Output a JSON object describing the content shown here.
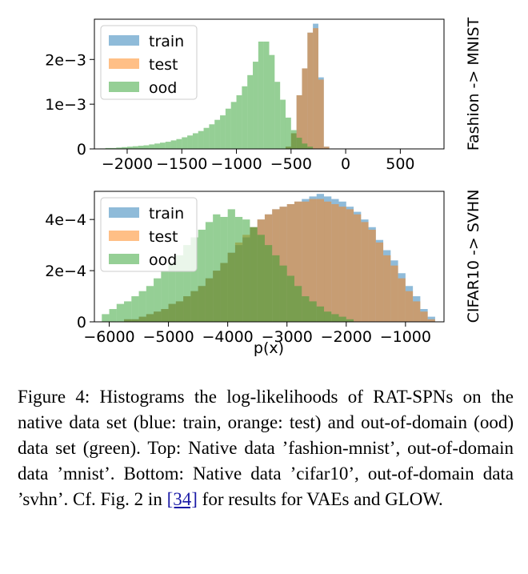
{
  "chart_data": [
    {
      "type": "histogram",
      "side_title": "Fashion -> MNIST",
      "xlim": [
        -2300,
        900
      ],
      "ylim": [
        0,
        0.0029
      ],
      "xticks": [
        -2000,
        -1500,
        -1000,
        -500,
        0,
        500
      ],
      "xtick_labels": [
        "−2000",
        "−1500",
        "−1000",
        "−500",
        "0",
        "500"
      ],
      "yticks": [
        0,
        0.001,
        0.002
      ],
      "ytick_labels": [
        "0",
        "1e−3",
        "2e−3"
      ],
      "bin_width": 50,
      "legend": "top-left",
      "series": [
        {
          "name": "train",
          "color": "#1f77b4",
          "alpha": 0.5,
          "bins": [
            [
              -550,
              5e-05
            ],
            [
              -500,
              0.00035
            ],
            [
              -450,
              0.0012
            ],
            [
              -400,
              0.0018
            ],
            [
              -350,
              0.0026
            ],
            [
              -300,
              0.0028
            ],
            [
              -250,
              0.0016
            ],
            [
              -200,
              5e-05
            ]
          ]
        },
        {
          "name": "test",
          "color": "#ff7f0e",
          "alpha": 0.5,
          "bins": [
            [
              -550,
              5e-05
            ],
            [
              -500,
              0.00035
            ],
            [
              -450,
              0.0012
            ],
            [
              -400,
              0.0018
            ],
            [
              -350,
              0.0026
            ],
            [
              -300,
              0.0027
            ],
            [
              -250,
              0.00155
            ],
            [
              -200,
              5e-05
            ]
          ]
        },
        {
          "name": "ood",
          "color": "#2ca02c",
          "alpha": 0.5,
          "bins": [
            [
              -2250,
              1e-05
            ],
            [
              -2200,
              2e-05
            ],
            [
              -2150,
              2e-05
            ],
            [
              -2100,
              3e-05
            ],
            [
              -2050,
              4e-05
            ],
            [
              -2000,
              5e-05
            ],
            [
              -1950,
              6e-05
            ],
            [
              -1900,
              7e-05
            ],
            [
              -1850,
              8e-05
            ],
            [
              -1800,
              0.0001
            ],
            [
              -1750,
              0.00012
            ],
            [
              -1700,
              0.00014
            ],
            [
              -1650,
              0.00016
            ],
            [
              -1600,
              0.00019
            ],
            [
              -1550,
              0.00022
            ],
            [
              -1500,
              0.00026
            ],
            [
              -1450,
              0.0003
            ],
            [
              -1400,
              0.00035
            ],
            [
              -1350,
              0.0004
            ],
            [
              -1300,
              0.00047
            ],
            [
              -1250,
              0.00055
            ],
            [
              -1200,
              0.00065
            ],
            [
              -1150,
              0.00075
            ],
            [
              -1100,
              0.0009
            ],
            [
              -1050,
              0.00105
            ],
            [
              -1000,
              0.0012
            ],
            [
              -950,
              0.0014
            ],
            [
              -900,
              0.00165
            ],
            [
              -850,
              0.00195
            ],
            [
              -800,
              0.0024
            ],
            [
              -750,
              0.0024
            ],
            [
              -700,
              0.0021
            ],
            [
              -650,
              0.0015
            ],
            [
              -600,
              0.0011
            ],
            [
              -550,
              0.0007
            ],
            [
              -500,
              0.00042
            ],
            [
              -450,
              0.00025
            ],
            [
              -400,
              0.00012
            ],
            [
              -350,
              5e-05
            ]
          ]
        }
      ]
    },
    {
      "type": "histogram",
      "side_title": "CIFAR10 -> SVHN",
      "xlim": [
        -6250,
        -350
      ],
      "ylim": [
        0,
        0.00051
      ],
      "xticks": [
        -6000,
        -5000,
        -4000,
        -3000,
        -2000,
        -1000
      ],
      "xtick_labels": [
        "−6000",
        "−5000",
        "−4000",
        "−3000",
        "−2000",
        "−1000"
      ],
      "yticks": [
        0,
        0.0002,
        0.0004
      ],
      "ytick_labels": [
        "0",
        "2e−4",
        "4e−4"
      ],
      "xlabel": "p(x)",
      "bin_width": 125,
      "legend": "top-left",
      "series": [
        {
          "name": "train",
          "color": "#1f77b4",
          "alpha": 0.5,
          "bins": [
            [
              -5750,
              1e-05
            ],
            [
              -5625,
              1e-05
            ],
            [
              -5500,
              2e-05
            ],
            [
              -5375,
              3e-05
            ],
            [
              -5250,
              4e-05
            ],
            [
              -5125,
              5e-05
            ],
            [
              -5000,
              7e-05
            ],
            [
              -4875,
              8e-05
            ],
            [
              -4750,
              0.0001
            ],
            [
              -4625,
              0.00012
            ],
            [
              -4500,
              0.00014
            ],
            [
              -4375,
              0.00017
            ],
            [
              -4250,
              0.0002
            ],
            [
              -4125,
              0.00023
            ],
            [
              -4000,
              0.00027
            ],
            [
              -3875,
              0.0003
            ],
            [
              -3750,
              0.00033
            ],
            [
              -3625,
              0.00037
            ],
            [
              -3500,
              0.0004
            ],
            [
              -3375,
              0.00042
            ],
            [
              -3250,
              0.00044
            ],
            [
              -3125,
              0.00045
            ],
            [
              -3000,
              0.00046
            ],
            [
              -2875,
              0.00047
            ],
            [
              -2750,
              0.00048
            ],
            [
              -2625,
              0.00049
            ],
            [
              -2500,
              0.0005
            ],
            [
              -2375,
              0.00049
            ],
            [
              -2250,
              0.00048
            ],
            [
              -2125,
              0.00047
            ],
            [
              -2000,
              0.00045
            ],
            [
              -1875,
              0.00043
            ],
            [
              -1750,
              0.0004
            ],
            [
              -1625,
              0.00037
            ],
            [
              -1500,
              0.00032
            ],
            [
              -1375,
              0.00028
            ],
            [
              -1250,
              0.00024
            ],
            [
              -1125,
              0.00019
            ],
            [
              -1000,
              0.00014
            ],
            [
              -875,
              0.0001
            ],
            [
              -750,
              5e-05
            ],
            [
              -625,
              2e-05
            ]
          ]
        },
        {
          "name": "test",
          "color": "#ff7f0e",
          "alpha": 0.5,
          "bins": [
            [
              -5750,
              1e-05
            ],
            [
              -5625,
              1e-05
            ],
            [
              -5500,
              2e-05
            ],
            [
              -5375,
              3e-05
            ],
            [
              -5250,
              4e-05
            ],
            [
              -5125,
              5e-05
            ],
            [
              -5000,
              7e-05
            ],
            [
              -4875,
              8e-05
            ],
            [
              -4750,
              0.0001
            ],
            [
              -4625,
              0.00012
            ],
            [
              -4500,
              0.00014
            ],
            [
              -4375,
              0.00017
            ],
            [
              -4250,
              0.0002
            ],
            [
              -4125,
              0.00023
            ],
            [
              -4000,
              0.00027
            ],
            [
              -3875,
              0.00031
            ],
            [
              -3750,
              0.00034
            ],
            [
              -3625,
              0.00037
            ],
            [
              -3500,
              0.0004
            ],
            [
              -3375,
              0.00042
            ],
            [
              -3250,
              0.00044
            ],
            [
              -3125,
              0.00045
            ],
            [
              -3000,
              0.00046
            ],
            [
              -2875,
              0.00047
            ],
            [
              -2750,
              0.00047
            ],
            [
              -2625,
              0.00048
            ],
            [
              -2500,
              0.00048
            ],
            [
              -2375,
              0.00047
            ],
            [
              -2250,
              0.00046
            ],
            [
              -2125,
              0.00045
            ],
            [
              -2000,
              0.00044
            ],
            [
              -1875,
              0.00042
            ],
            [
              -1750,
              0.00039
            ],
            [
              -1625,
              0.00036
            ],
            [
              -1500,
              0.00031
            ],
            [
              -1375,
              0.00026
            ],
            [
              -1250,
              0.00022
            ],
            [
              -1125,
              0.00017
            ],
            [
              -1000,
              0.00012
            ],
            [
              -875,
              8e-05
            ],
            [
              -750,
              4e-05
            ],
            [
              -625,
              1e-05
            ]
          ]
        },
        {
          "name": "ood",
          "color": "#2ca02c",
          "alpha": 0.5,
          "bins": [
            [
              -6125,
              3e-05
            ],
            [
              -6000,
              5e-05
            ],
            [
              -5875,
              7e-05
            ],
            [
              -5750,
              8e-05
            ],
            [
              -5625,
              0.0001
            ],
            [
              -5500,
              0.00012
            ],
            [
              -5375,
              0.00014
            ],
            [
              -5250,
              0.00017
            ],
            [
              -5125,
              0.0002
            ],
            [
              -5000,
              0.00023
            ],
            [
              -4875,
              0.00026
            ],
            [
              -4750,
              0.0003
            ],
            [
              -4625,
              0.00033
            ],
            [
              -4500,
              0.00036
            ],
            [
              -4375,
              0.00039
            ],
            [
              -4250,
              0.00042
            ],
            [
              -4125,
              0.00041
            ],
            [
              -4000,
              0.00044
            ],
            [
              -3875,
              0.00041
            ],
            [
              -3750,
              0.0004
            ],
            [
              -3625,
              0.00037
            ],
            [
              -3500,
              0.00034
            ],
            [
              -3375,
              0.0003
            ],
            [
              -3250,
              0.00026
            ],
            [
              -3125,
              0.00022
            ],
            [
              -3000,
              0.00018
            ],
            [
              -2875,
              0.00014
            ],
            [
              -2750,
              0.0001
            ],
            [
              -2625,
              8e-05
            ],
            [
              -2500,
              6e-05
            ],
            [
              -2375,
              4e-05
            ],
            [
              -2250,
              3e-05
            ],
            [
              -2125,
              2e-05
            ],
            [
              -2000,
              1e-05
            ]
          ]
        }
      ]
    }
  ],
  "caption": {
    "text_before": "Figure 4: Histograms the log-likelihoods of RAT-SPNs on the native data set (blue: train, orange: test) and out-of-domain (ood) data set (green).  Top: Native data ’fashion-mnist’, out-of-domain data ’mnist’.  Bottom: Native data ’cifar10’, out-of-domain data ’svhn’. Cf. Fig. 2 in ",
    "link_text": "[34]",
    "text_after": " for results for VAEs and GLOW."
  }
}
